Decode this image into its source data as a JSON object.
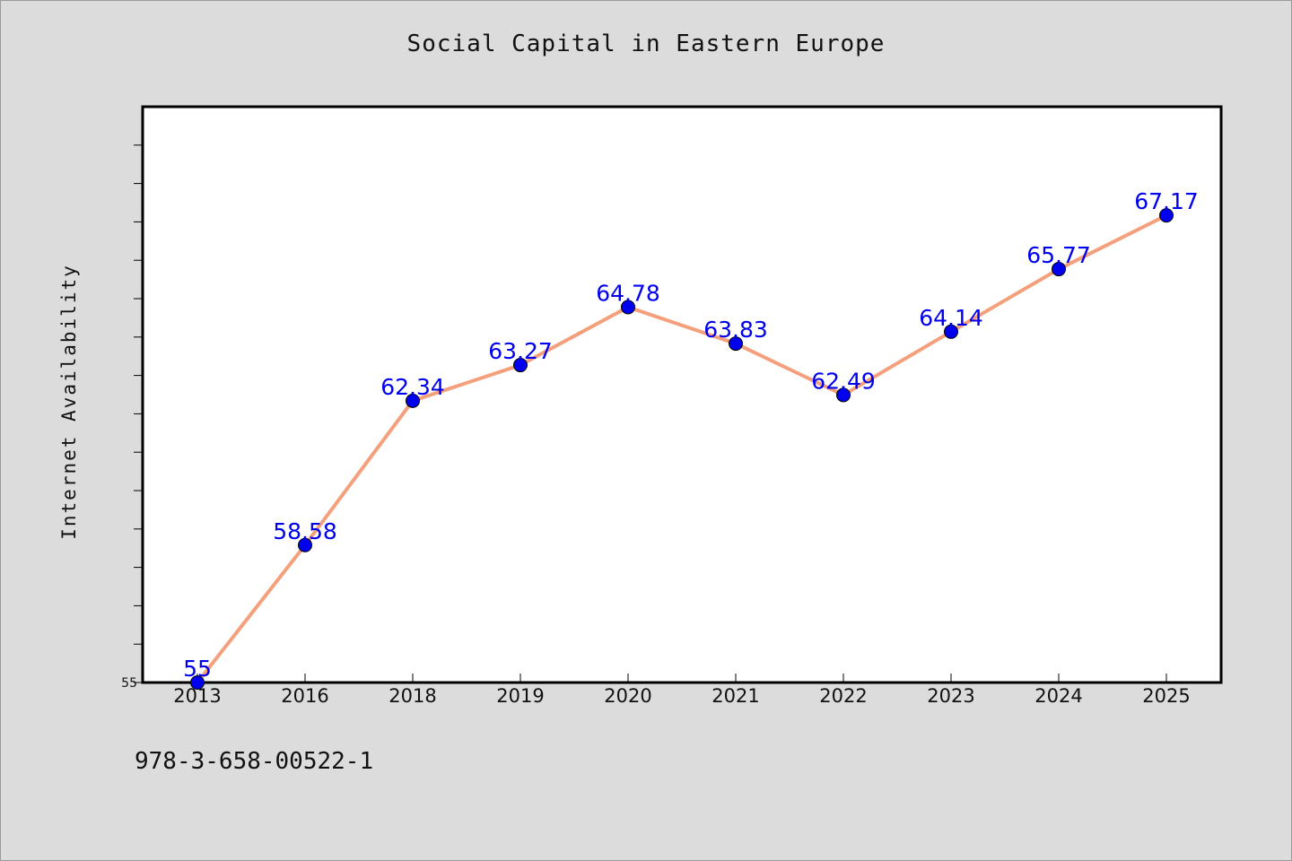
{
  "chart_data": {
    "type": "line",
    "title": "Social Capital in Eastern Europe",
    "xlabel": "",
    "ylabel": "Internet Availability",
    "categories": [
      "2013",
      "2016",
      "2018",
      "2019",
      "2020",
      "2021",
      "2022",
      "2023",
      "2024",
      "2025"
    ],
    "series": [
      {
        "values": [
          55,
          58.58,
          62.34,
          63.27,
          64.78,
          63.83,
          62.49,
          64.14,
          65.77,
          67.17
        ],
        "labels": [
          "55",
          "58.58",
          "62.34",
          "63.27",
          "64.78",
          "63.83",
          "62.49",
          "64.14",
          "65.77",
          "67.17"
        ],
        "line_color": "#f4a07c",
        "marker_color": "#0000ee"
      }
    ],
    "ylim": [
      55,
      70
    ],
    "yticks_labeled": [
      "55"
    ],
    "grid": false,
    "legend": "none"
  },
  "footer": {
    "isbn": "978-3-658-00522-1"
  }
}
